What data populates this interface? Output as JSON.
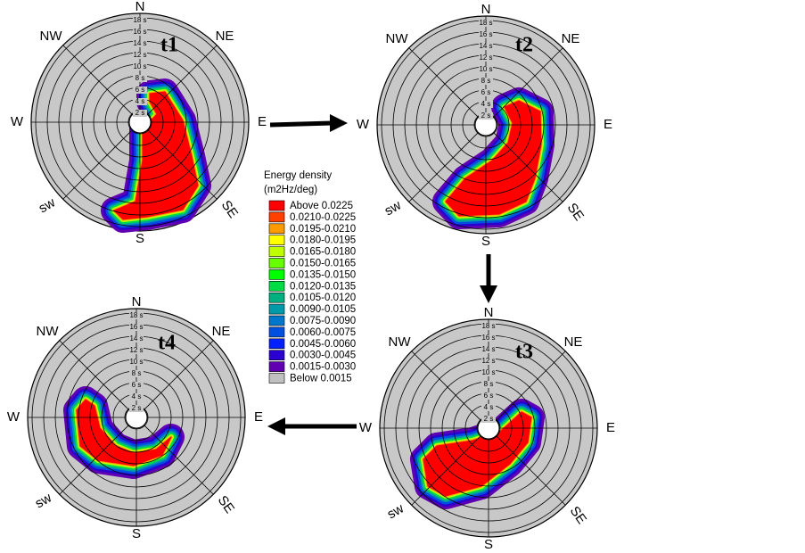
{
  "compass": [
    "N",
    "NE",
    "E",
    "SE",
    "S",
    "sw",
    "W",
    "NW"
  ],
  "rings": [
    "2 s",
    "4 s",
    "6 s",
    "8 s",
    "10 s",
    "12 s",
    "14 s",
    "16 s",
    "18 s"
  ],
  "panels": [
    {
      "label": "t1"
    },
    {
      "label": "t2"
    },
    {
      "label": "t3"
    },
    {
      "label": "t4"
    }
  ],
  "legend": {
    "title": "Energy density",
    "unit": "(m2Hz/deg)",
    "entries": [
      {
        "label": "Above  0.0225",
        "color": "#ff0000"
      },
      {
        "label": "0.0210-0.0225",
        "color": "#ff4000"
      },
      {
        "label": "0.0195-0.0210",
        "color": "#ff9900"
      },
      {
        "label": "0.0180-0.0195",
        "color": "#ffff00"
      },
      {
        "label": "0.0165-0.0180",
        "color": "#c0ff00"
      },
      {
        "label": "0.0150-0.0165",
        "color": "#66ff00"
      },
      {
        "label": "0.0135-0.0150",
        "color": "#00ff00"
      },
      {
        "label": "0.0120-0.0135",
        "color": "#00dd44"
      },
      {
        "label": "0.0105-0.0120",
        "color": "#00b080"
      },
      {
        "label": "0.0090-0.0105",
        "color": "#0099aa"
      },
      {
        "label": "0.0075-0.0090",
        "color": "#0077cc"
      },
      {
        "label": "0.0060-0.0075",
        "color": "#0050e0"
      },
      {
        "label": "0.0045-0.0060",
        "color": "#0020ff"
      },
      {
        "label": "0.0030-0.0045",
        "color": "#2a00d0"
      },
      {
        "label": "0.0015-0.0030",
        "color": "#6000b0"
      },
      {
        "label": "Below 0.0015",
        "color": "#c0c0c0"
      }
    ]
  }
}
